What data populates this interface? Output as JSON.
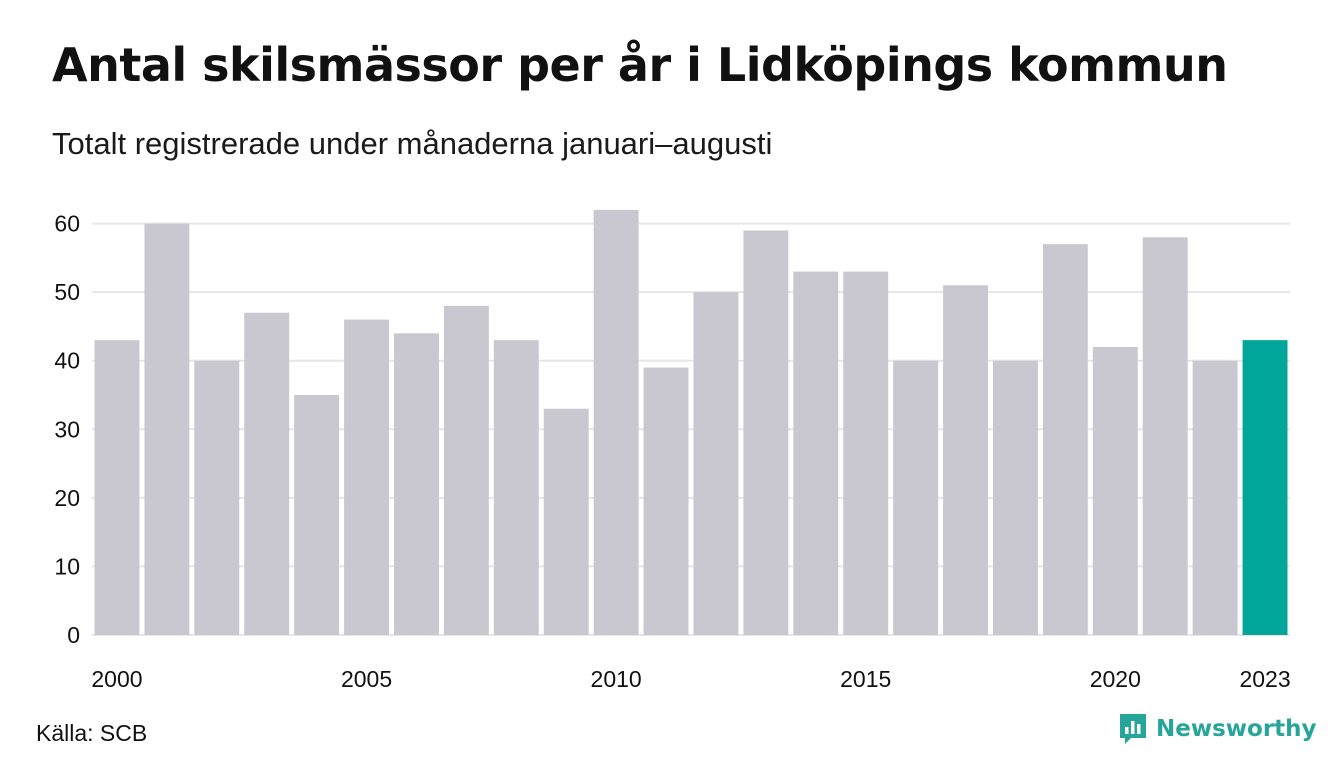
{
  "header": {
    "title": "Antal skilsmässor per år i Lidköpings kommun",
    "subtitle": "Totalt registrerade under månaderna januari–augusti"
  },
  "footer": {
    "source": "Källa: SCB",
    "brand": "Newsworthy",
    "brand_icon": "newsworthy-logo-icon"
  },
  "colors": {
    "bar": "#c9c8d1",
    "highlight": "#00a699",
    "grid": "#e6e6e6",
    "brand": "#26a69a"
  },
  "chart_data": {
    "type": "bar",
    "categories": [
      "2000",
      "2001",
      "2002",
      "2003",
      "2004",
      "2005",
      "2006",
      "2007",
      "2008",
      "2009",
      "2010",
      "2011",
      "2012",
      "2013",
      "2014",
      "2015",
      "2016",
      "2017",
      "2018",
      "2019",
      "2020",
      "2021",
      "2022",
      "2023"
    ],
    "values": [
      43,
      60,
      40,
      47,
      35,
      46,
      44,
      48,
      43,
      33,
      62,
      39,
      50,
      59,
      53,
      53,
      40,
      51,
      40,
      57,
      42,
      58,
      40,
      43
    ],
    "highlight_category": "2023",
    "x_tick_labels": [
      "2000",
      "2005",
      "2010",
      "2015",
      "2020",
      "2023"
    ],
    "y_ticks": [
      0,
      10,
      20,
      30,
      40,
      50,
      60
    ],
    "ylim": [
      0,
      63
    ],
    "grid": true,
    "legend": "none"
  }
}
